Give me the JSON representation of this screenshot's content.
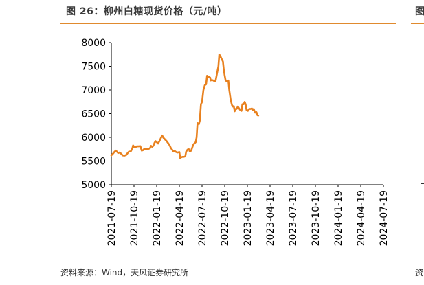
{
  "figure": {
    "title": "图 26：柳州白糖现货价格（元/吨）",
    "source": "资料来源：Wind，天风证券研究所",
    "right_panel_title_fragment": "图",
    "right_panel_source_fragment": "资",
    "accent_color": "#e08a2e",
    "line_color": "#e8811f"
  },
  "chart_data": {
    "type": "line",
    "title": "柳州白糖现货价格（元/吨）",
    "xlabel": "",
    "ylabel": "",
    "ylim": [
      5000,
      8000
    ],
    "yticks": [
      "5000",
      "5500",
      "6000",
      "6500",
      "7000",
      "7500",
      "8000"
    ],
    "xticks": [
      "2021-07-19",
      "2021-10-19",
      "2022-01-19",
      "2022-04-19",
      "2022-07-19",
      "2022-10-19",
      "2023-01-19",
      "2023-04-19",
      "2023-07-19",
      "2023-10-19",
      "2024-01-19",
      "2024-04-19",
      "2024-07-19"
    ],
    "grid": false,
    "legend": "none",
    "series": [
      {
        "name": "柳州白糖现货价格",
        "points": [
          [
            0,
            5620
          ],
          [
            0.08,
            5660
          ],
          [
            0.15,
            5700
          ],
          [
            0.2,
            5720
          ],
          [
            0.26,
            5690
          ],
          [
            0.3,
            5670
          ],
          [
            0.35,
            5680
          ],
          [
            0.42,
            5660
          ],
          [
            0.5,
            5620
          ],
          [
            0.58,
            5615
          ],
          [
            0.66,
            5630
          ],
          [
            0.72,
            5670
          ],
          [
            0.78,
            5700
          ],
          [
            0.85,
            5700
          ],
          [
            0.92,
            5760
          ],
          [
            0.96,
            5830
          ],
          [
            1.0,
            5800
          ],
          [
            1.06,
            5790
          ],
          [
            1.12,
            5810
          ],
          [
            1.2,
            5810
          ],
          [
            1.28,
            5815
          ],
          [
            1.34,
            5720
          ],
          [
            1.4,
            5730
          ],
          [
            1.46,
            5760
          ],
          [
            1.52,
            5750
          ],
          [
            1.6,
            5750
          ],
          [
            1.7,
            5770
          ],
          [
            1.75,
            5820
          ],
          [
            1.8,
            5800
          ],
          [
            1.85,
            5820
          ],
          [
            1.9,
            5880
          ],
          [
            1.95,
            5920
          ],
          [
            2.0,
            5900
          ],
          [
            2.06,
            5870
          ],
          [
            2.12,
            5920
          ],
          [
            2.18,
            5980
          ],
          [
            2.24,
            6040
          ],
          [
            2.3,
            5990
          ],
          [
            2.36,
            5960
          ],
          [
            2.44,
            5920
          ],
          [
            2.5,
            5880
          ],
          [
            2.56,
            5840
          ],
          [
            2.62,
            5780
          ],
          [
            2.68,
            5740
          ],
          [
            2.74,
            5700
          ],
          [
            2.8,
            5710
          ],
          [
            2.86,
            5690
          ],
          [
            2.92,
            5680
          ],
          [
            3.0,
            5690
          ],
          [
            3.04,
            5560
          ],
          [
            3.08,
            5580
          ],
          [
            3.14,
            5590
          ],
          [
            3.2,
            5590
          ],
          [
            3.26,
            5600
          ],
          [
            3.3,
            5700
          ],
          [
            3.36,
            5740
          ],
          [
            3.42,
            5750
          ],
          [
            3.46,
            5700
          ],
          [
            3.52,
            5720
          ],
          [
            3.58,
            5800
          ],
          [
            3.62,
            5850
          ],
          [
            3.68,
            5880
          ],
          [
            3.72,
            5900
          ],
          [
            3.76,
            6000
          ],
          [
            3.8,
            6300
          ],
          [
            3.86,
            6280
          ],
          [
            3.9,
            6350
          ],
          [
            3.95,
            6700
          ],
          [
            4.0,
            6750
          ],
          [
            4.06,
            7000
          ],
          [
            4.12,
            7100
          ],
          [
            4.18,
            7120
          ],
          [
            4.22,
            7300
          ],
          [
            4.26,
            7280
          ],
          [
            4.3,
            7280
          ],
          [
            4.36,
            7260
          ],
          [
            4.38,
            7200
          ],
          [
            4.44,
            7210
          ],
          [
            4.5,
            7200
          ],
          [
            4.56,
            7180
          ],
          [
            4.6,
            7200
          ],
          [
            4.66,
            7350
          ],
          [
            4.72,
            7500
          ],
          [
            4.76,
            7750
          ],
          [
            4.82,
            7700
          ],
          [
            4.86,
            7660
          ],
          [
            4.92,
            7600
          ],
          [
            4.96,
            7420
          ],
          [
            5.0,
            7300
          ],
          [
            5.04,
            7200
          ],
          [
            5.1,
            7180
          ],
          [
            5.16,
            7200
          ],
          [
            5.2,
            7000
          ],
          [
            5.26,
            6800
          ],
          [
            5.3,
            6720
          ],
          [
            5.34,
            6650
          ],
          [
            5.4,
            6660
          ],
          [
            5.44,
            6550
          ],
          [
            5.48,
            6600
          ],
          [
            5.52,
            6600
          ],
          [
            5.58,
            6650
          ],
          [
            5.62,
            6620
          ],
          [
            5.68,
            6580
          ],
          [
            5.74,
            6560
          ],
          [
            5.78,
            6700
          ],
          [
            5.84,
            6700
          ],
          [
            5.88,
            6750
          ],
          [
            5.92,
            6700
          ],
          [
            5.96,
            6580
          ],
          [
            6.02,
            6560
          ],
          [
            6.08,
            6600
          ],
          [
            6.14,
            6600
          ],
          [
            6.2,
            6610
          ],
          [
            6.24,
            6580
          ],
          [
            6.28,
            6600
          ],
          [
            6.34,
            6520
          ],
          [
            6.4,
            6530
          ],
          [
            6.44,
            6470
          ],
          [
            6.48,
            6460
          ]
        ]
      }
    ]
  }
}
